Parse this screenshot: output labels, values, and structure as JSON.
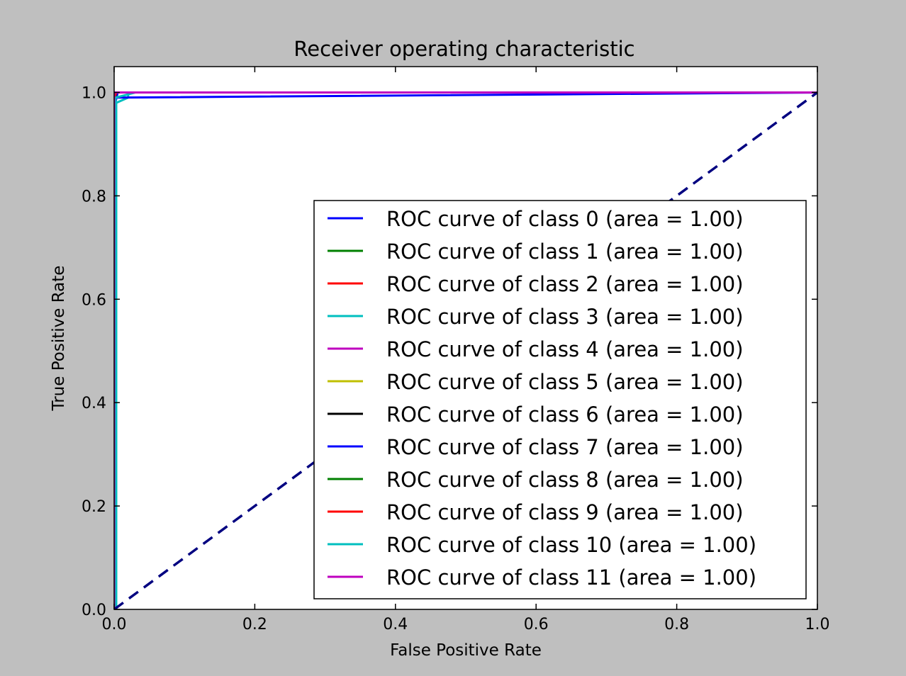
{
  "chart_data": {
    "type": "line",
    "title": "Receiver operating characteristic",
    "xlabel": "False Positive Rate",
    "ylabel": "True Positive Rate",
    "xlim": [
      0.0,
      1.0
    ],
    "ylim": [
      0.0,
      1.05
    ],
    "xticks": [
      "0.0",
      "0.2",
      "0.4",
      "0.6",
      "0.8",
      "1.0"
    ],
    "yticks": [
      "0.0",
      "0.2",
      "0.4",
      "0.6",
      "0.8",
      "1.0"
    ],
    "grid": false,
    "legend_position": "lower-right",
    "series": [
      {
        "name": "ROC curve of class 0 (area = 1.00)",
        "color": "#0000ff",
        "x": [
          0,
          0,
          0.005,
          1
        ],
        "y": [
          0,
          0.97,
          1.0,
          1.0
        ]
      },
      {
        "name": "ROC curve of class 1 (area = 1.00)",
        "color": "#008000",
        "x": [
          0,
          0,
          0.003,
          1
        ],
        "y": [
          0,
          0.985,
          1.0,
          1.0
        ]
      },
      {
        "name": "ROC curve of class 2 (area = 1.00)",
        "color": "#ff0000",
        "x": [
          0,
          0,
          0.003,
          1
        ],
        "y": [
          0,
          0.99,
          1.0,
          1.0
        ]
      },
      {
        "name": "ROC curve of class 3 (area = 1.00)",
        "color": "#00bfbf",
        "x": [
          0,
          0.003,
          0.003,
          0.02,
          0.02,
          1
        ],
        "y": [
          0,
          0,
          0.98,
          0.99,
          1.0,
          1.0
        ]
      },
      {
        "name": "ROC curve of class 4 (area = 1.00)",
        "color": "#bf00bf",
        "x": [
          0,
          0,
          1
        ],
        "y": [
          0,
          1.0,
          1.0
        ]
      },
      {
        "name": "ROC curve of class 5 (area = 1.00)",
        "color": "#bfbf00",
        "x": [
          0,
          0,
          1
        ],
        "y": [
          0,
          1.0,
          1.0
        ]
      },
      {
        "name": "ROC curve of class 6 (area = 1.00)",
        "color": "#000000",
        "x": [
          0,
          0,
          1
        ],
        "y": [
          0,
          1.0,
          1.0
        ]
      },
      {
        "name": "ROC curve of class 7 (area = 1.00)",
        "color": "#0000ff",
        "x": [
          0,
          0,
          1
        ],
        "y": [
          0,
          0.99,
          1.0
        ]
      },
      {
        "name": "ROC curve of class 8 (area = 1.00)",
        "color": "#008000",
        "x": [
          0,
          0,
          1
        ],
        "y": [
          0,
          1.0,
          1.0
        ]
      },
      {
        "name": "ROC curve of class 9 (area = 1.00)",
        "color": "#ff0000",
        "x": [
          0,
          0,
          1
        ],
        "y": [
          0,
          1.0,
          1.0
        ]
      },
      {
        "name": "ROC curve of class 10 (area = 1.00)",
        "color": "#00bfbf",
        "x": [
          0,
          0.002,
          0.002,
          0.03,
          1
        ],
        "y": [
          0,
          0,
          0.99,
          1.0,
          1.0
        ]
      },
      {
        "name": "ROC curve of class 11 (area = 1.00)",
        "color": "#bf00bf",
        "x": [
          0,
          0,
          1
        ],
        "y": [
          0,
          1.0,
          1.0
        ]
      }
    ],
    "reference_line": {
      "x": [
        0,
        1
      ],
      "y": [
        0,
        1
      ],
      "color": "#000080",
      "style": "dashed"
    }
  }
}
